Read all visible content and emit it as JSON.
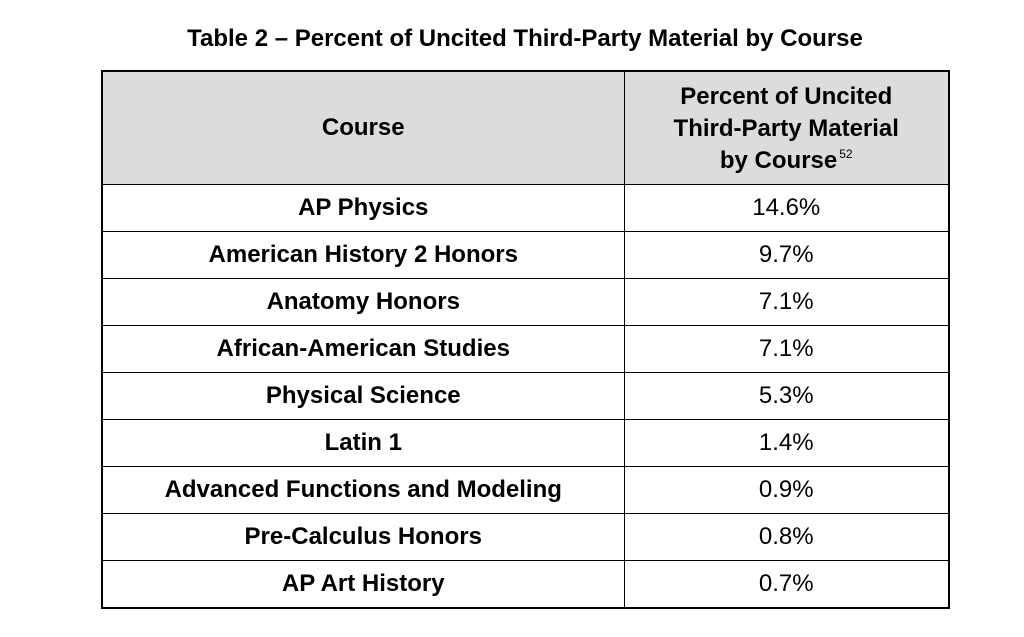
{
  "table": {
    "caption": "Table 2 – Percent of Uncited Third-Party Material by Course",
    "header": {
      "course": "Course",
      "percent_line1": "Percent of Uncited",
      "percent_line2": "Third-Party Material",
      "percent_line3": "by Course",
      "footnote": "52"
    },
    "rows": [
      {
        "course": "AP Physics",
        "percent": "14.6%"
      },
      {
        "course": "American History 2 Honors",
        "percent": "9.7%"
      },
      {
        "course": "Anatomy Honors",
        "percent": "7.1%"
      },
      {
        "course": "African-American Studies",
        "percent": "7.1%"
      },
      {
        "course": "Physical Science",
        "percent": "5.3%"
      },
      {
        "course": "Latin 1",
        "percent": "1.4%"
      },
      {
        "course": "Advanced Functions and Modeling",
        "percent": "0.9%"
      },
      {
        "course": "Pre-Calculus Honors",
        "percent": "0.8%"
      },
      {
        "course": "AP Art History",
        "percent": "0.7%"
      }
    ]
  },
  "colors": {
    "header_background": "#dcdcdc",
    "border": "#000000",
    "text": "#000000",
    "page_background": "#ffffff"
  }
}
